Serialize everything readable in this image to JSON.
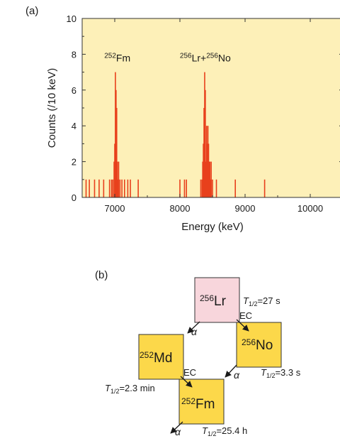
{
  "panel_a": {
    "label": "(a)",
    "chart_data": {
      "type": "bar",
      "xlabel": "Energy (keV)",
      "ylabel": "Counts (/10 keV)",
      "xlim": [
        6500,
        10500
      ],
      "ylim": [
        0,
        10
      ],
      "x_ticks": [
        7000,
        8000,
        9000,
        10000
      ],
      "y_ticks": [
        0,
        2,
        4,
        6,
        8,
        10
      ],
      "bin_width_keV": 10,
      "background_color": "#fdf0b8",
      "bar_color": "#e8401c",
      "annotations": [
        {
          "mass": "252",
          "text": "Fm",
          "x": 7040,
          "y": 7.6
        },
        {
          "mass": "256",
          "text": "Lr+",
          "mass2": "256",
          "text2": "No",
          "x": 8390,
          "y": 7.6
        }
      ],
      "series": [
        {
          "x": [
            6560,
            6610,
            6690,
            6760,
            6830,
            6920,
            6950,
            6970,
            6990,
            7000,
            7010,
            7020,
            7030,
            7040,
            7050,
            7060,
            7080,
            7110,
            7150,
            7200,
            7240,
            7360,
            8000,
            8070,
            8100,
            8320,
            8340,
            8350,
            8360,
            8370,
            8380,
            8390,
            8400,
            8410,
            8420,
            8430,
            8440,
            8450,
            8460,
            8470,
            8480,
            8500,
            8560,
            8850,
            9300
          ],
          "values": [
            1,
            1,
            1,
            1,
            1,
            1,
            1,
            1,
            2,
            3,
            7,
            6,
            5,
            2,
            1,
            2,
            1,
            1,
            1,
            1,
            1,
            1,
            1,
            1,
            1,
            1,
            1,
            2,
            3,
            5,
            7,
            6,
            2,
            4,
            3,
            4,
            3,
            2,
            2,
            1,
            2,
            1,
            1,
            1,
            1
          ]
        }
      ]
    }
  },
  "panel_b": {
    "label": "(b)",
    "colors": {
      "lr_box": "#f8d6dc",
      "box": "#fcd84a",
      "border": "#333333"
    },
    "nuclides": [
      {
        "id": "lr",
        "mass": "256",
        "symbol": "Lr",
        "half_life": "=27 s"
      },
      {
        "id": "no",
        "mass": "256",
        "symbol": "No",
        "half_life": "=3.3 s"
      },
      {
        "id": "md",
        "mass": "252",
        "symbol": "Md",
        "half_life": "=2.3 min"
      },
      {
        "id": "fm",
        "mass": "252",
        "symbol": "Fm",
        "half_life": "=25.4 h"
      }
    ],
    "half_life_symbol": "T",
    "half_life_subscript": "1/2",
    "decay_labels": {
      "ec": "EC",
      "alpha": "α"
    }
  }
}
